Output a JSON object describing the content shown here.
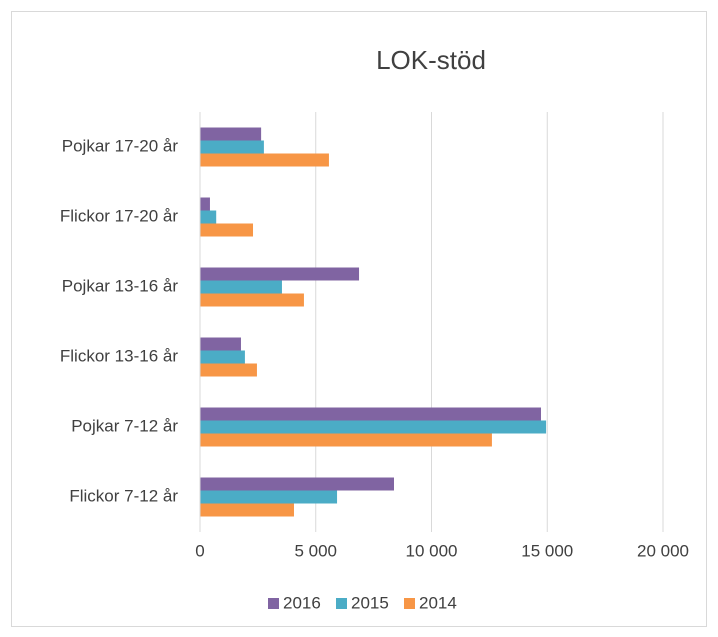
{
  "chart_data": {
    "type": "hbar",
    "title": "LOK-stöd",
    "categories": [
      "Pojkar 17-20 år",
      "Flickor 17-20 år",
      "Pojkar 13-16 år",
      "Flickor 13-16 år",
      "Pojkar 7-12 år",
      "Flickor 7-12 år"
    ],
    "series": [
      {
        "name": "2016",
        "color": "#8064a2",
        "values": [
          2640,
          430,
          6870,
          1770,
          14730,
          8380
        ]
      },
      {
        "name": "2015",
        "color": "#4bacc6",
        "values": [
          2760,
          700,
          3540,
          1940,
          14950,
          5920
        ]
      },
      {
        "name": "2014",
        "color": "#f79646",
        "values": [
          5570,
          2290,
          4490,
          2460,
          12610,
          4060
        ]
      }
    ],
    "xlim": [
      0,
      20000
    ],
    "xticks": [
      0,
      {
        "value": 5000,
        "label": "5 000"
      },
      {
        "value": 10000,
        "label": "10 000"
      },
      {
        "value": 15000,
        "label": "15 000"
      },
      {
        "value": 20000,
        "label": "20 000"
      }
    ],
    "grid": true,
    "legend": "bottom"
  }
}
